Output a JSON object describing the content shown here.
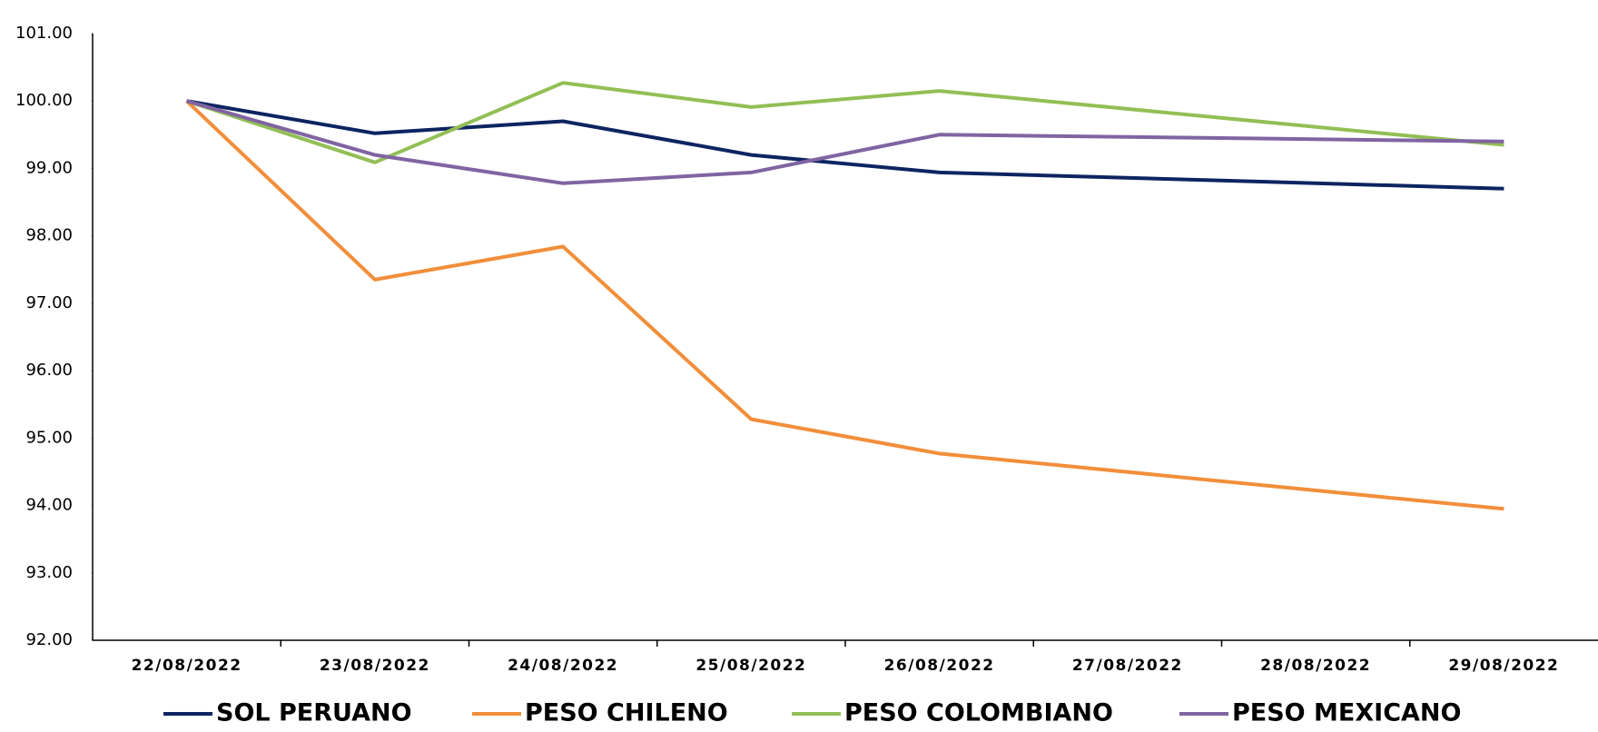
{
  "chart_data": {
    "type": "line",
    "xticks": [
      "22/08/2022",
      "23/08/2022",
      "24/08/2022",
      "25/08/2022",
      "26/08/2022",
      "27/08/2022",
      "28/08/2022",
      "29/08/2022"
    ],
    "x": [
      "22/08/2022",
      "23/08/2022",
      "24/08/2022",
      "25/08/2022",
      "26/08/2022",
      "29/08/2022"
    ],
    "series": [
      {
        "name": "SOL PERUANO",
        "color": "#0d2461",
        "values": [
          100,
          99.52,
          99.7,
          99.2,
          98.94,
          98.7
        ]
      },
      {
        "name": "PESO CHILENO",
        "color": "#f28e3a",
        "values": [
          100,
          97.35,
          97.84,
          95.28,
          94.77,
          93.95
        ]
      },
      {
        "name": "PESO COLOMBIANO",
        "color": "#92bf55",
        "values": [
          100,
          99.09,
          100.27,
          99.91,
          100.15,
          99.35
        ]
      },
      {
        "name": "PESO MEXICANO",
        "color": "#8064a2",
        "values": [
          100,
          99.2,
          98.78,
          98.94,
          99.5,
          99.4
        ]
      }
    ],
    "ylim": [
      92,
      101
    ],
    "yticks": [
      {
        "value": 92,
        "label": "92.00"
      },
      {
        "value": 93,
        "label": "93.00"
      },
      {
        "value": 94,
        "label": "94.00"
      },
      {
        "value": 95,
        "label": "95.00"
      },
      {
        "value": 96,
        "label": "96.00"
      },
      {
        "value": 97,
        "label": "97.00"
      },
      {
        "value": 98,
        "label": "98.00"
      },
      {
        "value": 99,
        "label": "99.00"
      },
      {
        "value": 100,
        "label": "100.00"
      },
      {
        "value": 101,
        "label": "101.00"
      }
    ],
    "legend": "bottom"
  }
}
